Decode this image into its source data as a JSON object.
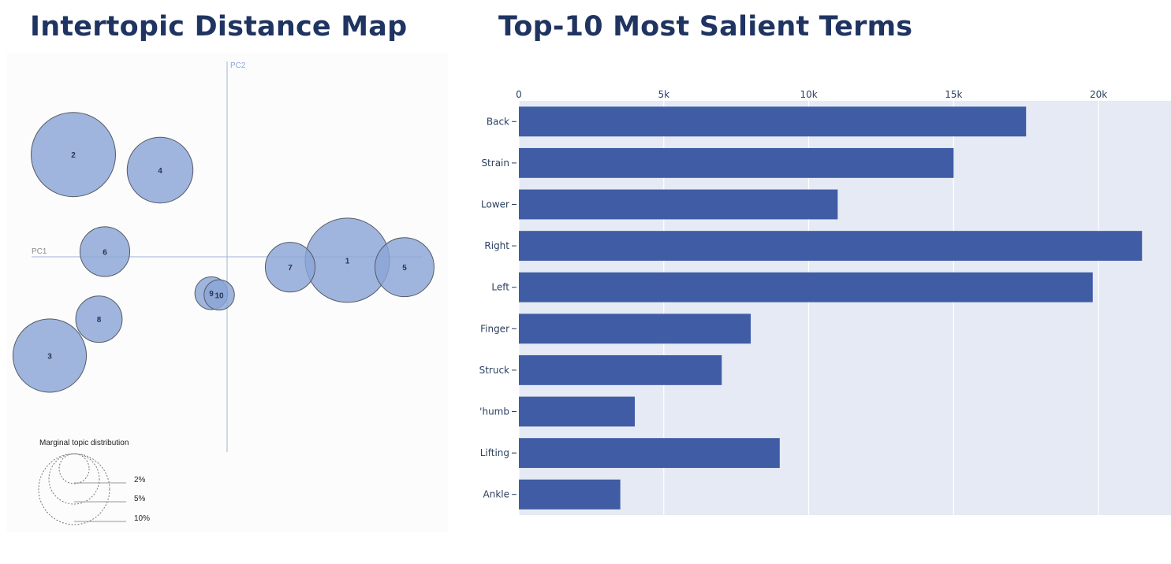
{
  "panels": {
    "left_title": "Intertopic Distance Map",
    "right_title": "Top-10 Most Salient Terms"
  },
  "chart_data": [
    {
      "type": "scatter",
      "title": "Intertopic Distance Map",
      "xlabel": "PC1",
      "ylabel": "PC2",
      "xlim": [
        -10,
        10
      ],
      "ylim": [
        -10,
        10
      ],
      "grid": false,
      "marker_color": "#8aa5d6",
      "points": [
        {
          "label": "1",
          "x": 6.1,
          "y": -0.2,
          "size": 10.0
        },
        {
          "label": "2",
          "x": -7.8,
          "y": 5.9,
          "size": 10.0
        },
        {
          "label": "3",
          "x": -9.0,
          "y": -5.7,
          "size": 8.7
        },
        {
          "label": "4",
          "x": -3.4,
          "y": 5.0,
          "size": 7.8
        },
        {
          "label": "5",
          "x": 9.0,
          "y": -0.6,
          "size": 7.0
        },
        {
          "label": "6",
          "x": -6.2,
          "y": 0.3,
          "size": 5.9
        },
        {
          "label": "7",
          "x": 3.2,
          "y": -0.6,
          "size": 5.9
        },
        {
          "label": "8",
          "x": -6.5,
          "y": -3.6,
          "size": 5.5
        },
        {
          "label": "9",
          "x": -0.8,
          "y": -2.1,
          "size": 3.9
        },
        {
          "label": "10",
          "x": -0.4,
          "y": -2.2,
          "size": 3.6
        }
      ],
      "legend": {
        "title": "Marginal topic distribution",
        "items": [
          "2%",
          "5%",
          "10%"
        ],
        "placement": "bottom-left"
      }
    },
    {
      "type": "bar",
      "orientation": "horizontal",
      "title": "Top-10 Most Salient Terms",
      "categories": [
        "Back",
        "Strain",
        "Lower",
        "Right",
        "Left",
        "Finger",
        "Struck",
        "Thumb",
        "Lifting",
        "Ankle"
      ],
      "category_display": [
        "Back",
        "Strain",
        "Lower",
        "Right",
        "Left",
        "Finger",
        "Struck",
        "'humb",
        "Lifting",
        "Ankle"
      ],
      "values": [
        17500,
        15000,
        11000,
        21500,
        19800,
        8000,
        7000,
        4000,
        9000,
        3500
      ],
      "xlim": [
        0,
        22500
      ],
      "xticks": [
        0,
        5000,
        10000,
        15000,
        20000
      ],
      "xtick_labels": [
        "0",
        "5k",
        "10k",
        "15k",
        "20k"
      ],
      "xaxis_side": "top",
      "bar_color": "#3f5ca5",
      "plot_bg": "#e6eaf4",
      "grid": true
    }
  ]
}
